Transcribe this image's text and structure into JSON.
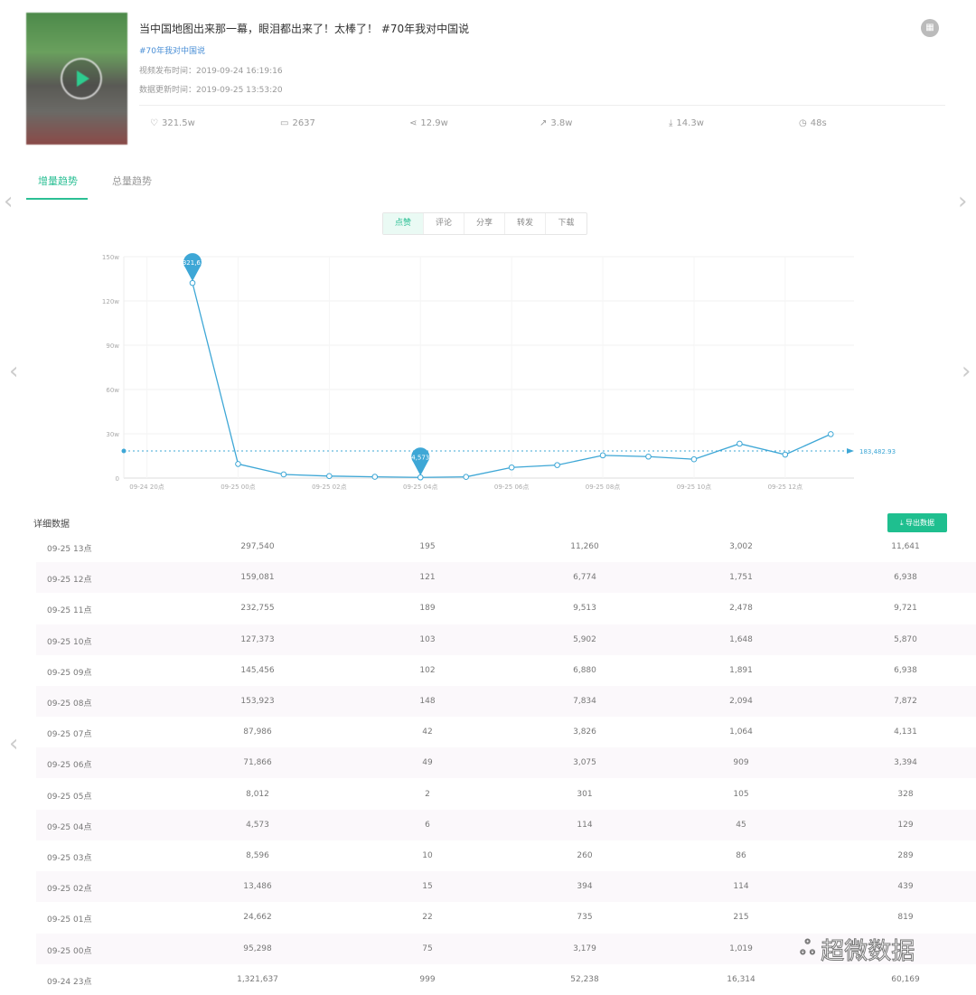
{
  "video": {
    "title": "当中国地图出来那一幕，眼泪都出来了！太棒了！ #70年我对中国说",
    "topic": "#70年我对中国说",
    "publish_time": "视频发布时间：2019-09-24 16:19:16",
    "update_time": "数据更新时间：2019-09-25 13:53:20",
    "stats": [
      {
        "icon": "heart-icon",
        "value": "321.5w"
      },
      {
        "icon": "comment-icon",
        "value": "2637"
      },
      {
        "icon": "share-icon",
        "value": "12.9w"
      },
      {
        "icon": "forward-icon",
        "value": "3.8w"
      },
      {
        "icon": "download-icon",
        "value": "14.3w"
      },
      {
        "icon": "clock-icon",
        "value": "48s"
      }
    ]
  },
  "tabs": [
    {
      "label": "增量趋势",
      "active": true
    },
    {
      "label": "总量趋势",
      "active": false
    }
  ],
  "metric_tabs": [
    {
      "label": "点赞",
      "active": true
    },
    {
      "label": "评论"
    },
    {
      "label": "分享"
    },
    {
      "label": "转发"
    },
    {
      "label": "下载"
    }
  ],
  "accent": "#2bbf94",
  "chart_data": {
    "type": "line",
    "categories": [
      "09-24 23点",
      "09-25 00点",
      "09-25 01点",
      "09-25 02点",
      "09-25 03点",
      "09-25 04点",
      "09-25 05点",
      "09-25 06点",
      "09-25 07点",
      "09-25 08点",
      "09-25 09点",
      "09-25 10点",
      "09-25 11点",
      "09-25 12点",
      "09-25 13点"
    ],
    "values": [
      1321637,
      95298,
      24662,
      13486,
      8596,
      4573,
      8012,
      71866,
      87986,
      153923,
      145456,
      127373,
      232755,
      159081,
      297540
    ],
    "x_tick_labels": [
      "09-24 20点",
      "09-25 00点",
      "09-25 02点",
      "09-25 04点",
      "09-25 06点",
      "09-25 08点",
      "09-25 10点",
      "09-25 12点"
    ],
    "y_tick_labels": [
      "0",
      "30w",
      "60w",
      "90w",
      "120w",
      "150w"
    ],
    "ylim": [
      0,
      1500000
    ],
    "mark_points": [
      {
        "label": "1,321,637",
        "value": 1321637,
        "index": 0
      },
      {
        "label": "4,573",
        "value": 4573,
        "index": 5
      }
    ],
    "average_line": {
      "value": 183482.93,
      "label": "183,482.93"
    },
    "color": "#3ea7d6",
    "grid": true
  },
  "detail": {
    "title": "详细数据",
    "export_label": "导出数据",
    "rows": [
      [
        "09-25 13点",
        "297,540",
        "195",
        "11,260",
        "3,002",
        "11,641"
      ],
      [
        "09-25 12点",
        "159,081",
        "121",
        "6,774",
        "1,751",
        "6,938"
      ],
      [
        "09-25 11点",
        "232,755",
        "189",
        "9,513",
        "2,478",
        "9,721"
      ],
      [
        "09-25 10点",
        "127,373",
        "103",
        "5,902",
        "1,648",
        "5,870"
      ],
      [
        "09-25 09点",
        "145,456",
        "102",
        "6,880",
        "1,891",
        "6,938"
      ],
      [
        "09-25 08点",
        "153,923",
        "148",
        "7,834",
        "2,094",
        "7,872"
      ],
      [
        "09-25 07点",
        "87,986",
        "42",
        "3,826",
        "1,064",
        "4,131"
      ],
      [
        "09-25 06点",
        "71,866",
        "49",
        "3,075",
        "909",
        "3,394"
      ],
      [
        "09-25 05点",
        "8,012",
        "2",
        "301",
        "105",
        "328"
      ],
      [
        "09-25 04点",
        "4,573",
        "6",
        "114",
        "45",
        "129"
      ],
      [
        "09-25 03点",
        "8,596",
        "10",
        "260",
        "86",
        "289"
      ],
      [
        "09-25 02点",
        "13,486",
        "15",
        "394",
        "114",
        "439"
      ],
      [
        "09-25 01点",
        "24,662",
        "22",
        "735",
        "215",
        "819"
      ],
      [
        "09-25 00点",
        "95,298",
        "75",
        "3,179",
        "1,019",
        ""
      ],
      [
        "09-24 23点",
        "1,321,637",
        "999",
        "52,238",
        "16,314",
        "60,169"
      ]
    ]
  },
  "watermark": "超微数据"
}
